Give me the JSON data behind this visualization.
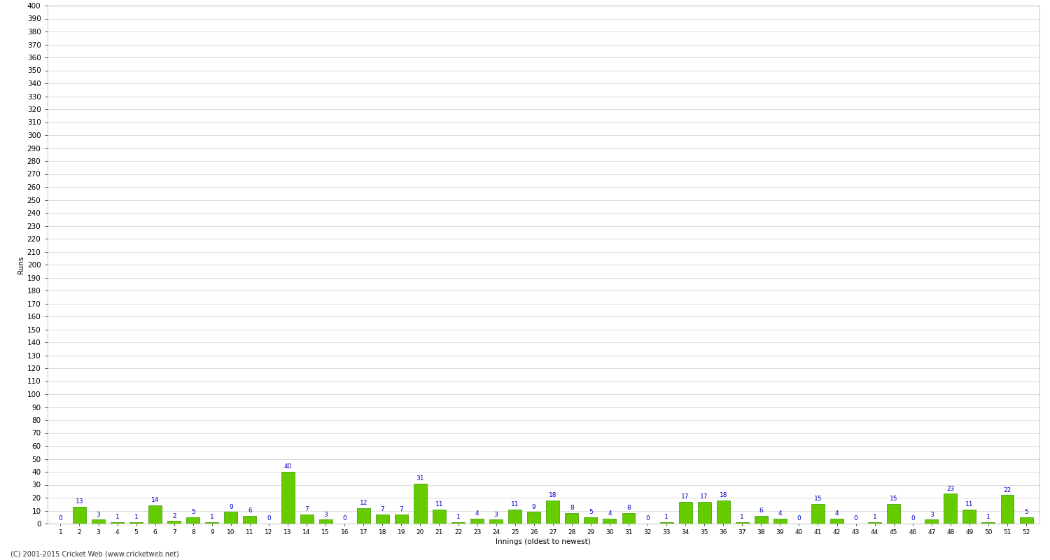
{
  "values": [
    0,
    13,
    3,
    1,
    1,
    14,
    2,
    5,
    1,
    9,
    6,
    0,
    40,
    7,
    3,
    0,
    12,
    7,
    7,
    31,
    11,
    1,
    4,
    3,
    11,
    9,
    18,
    8,
    5,
    4,
    8,
    0,
    1,
    17,
    17,
    18,
    1,
    6,
    4,
    0,
    15,
    4,
    0,
    1,
    15,
    0,
    3,
    23,
    11,
    1,
    22,
    5
  ],
  "labels": [
    "1",
    "2",
    "3",
    "4",
    "5",
    "6",
    "7",
    "8",
    "9",
    "10",
    "11",
    "12",
    "13",
    "14",
    "15",
    "16",
    "17",
    "18",
    "19",
    "20",
    "21",
    "22",
    "23",
    "24",
    "25",
    "26",
    "27",
    "28",
    "29",
    "30",
    "31",
    "32",
    "33",
    "34",
    "35",
    "36",
    "37",
    "38",
    "39",
    "40",
    "41",
    "42",
    "43",
    "44",
    "45",
    "46",
    "47",
    "48",
    "49",
    "50",
    "51",
    "52"
  ],
  "bar_color": "#66cc00",
  "bar_edge_color": "#339900",
  "label_color": "#0000cc",
  "bg_color": "#ffffff",
  "grid_color": "#cccccc",
  "ylabel": "Runs",
  "xlabel": "Innings (oldest to newest)",
  "footer": "(C) 2001-2015 Cricket Web (www.cricketweb.net)",
  "ylim_max": 400,
  "ytick_step": 10,
  "label_fontsize": 6.5,
  "axis_fontsize": 7.5,
  "footer_fontsize": 7
}
